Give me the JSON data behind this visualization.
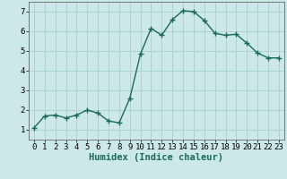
{
  "x": [
    0,
    1,
    2,
    3,
    4,
    5,
    6,
    7,
    8,
    9,
    10,
    11,
    12,
    13,
    14,
    15,
    16,
    17,
    18,
    19,
    20,
    21,
    22,
    23
  ],
  "y": [
    1.1,
    1.7,
    1.75,
    1.6,
    1.75,
    2.0,
    1.85,
    1.45,
    1.35,
    2.6,
    4.85,
    6.15,
    5.8,
    6.6,
    7.05,
    7.0,
    6.55,
    5.9,
    5.8,
    5.85,
    5.4,
    4.9,
    4.65,
    4.65
  ],
  "xlabel": "Humidex (Indice chaleur)",
  "xlim": [
    -0.5,
    23.5
  ],
  "ylim": [
    0.5,
    7.5
  ],
  "yticks": [
    1,
    2,
    3,
    4,
    5,
    6,
    7
  ],
  "xticks": [
    0,
    1,
    2,
    3,
    4,
    5,
    6,
    7,
    8,
    9,
    10,
    11,
    12,
    13,
    14,
    15,
    16,
    17,
    18,
    19,
    20,
    21,
    22,
    23
  ],
  "line_color": "#1a6b5a",
  "bg_color": "#cce8e8",
  "grid_color": "#aacece",
  "marker": "+",
  "marker_size": 4,
  "linewidth": 1.0,
  "tick_fontsize": 6.5,
  "xlabel_fontsize": 7.5
}
